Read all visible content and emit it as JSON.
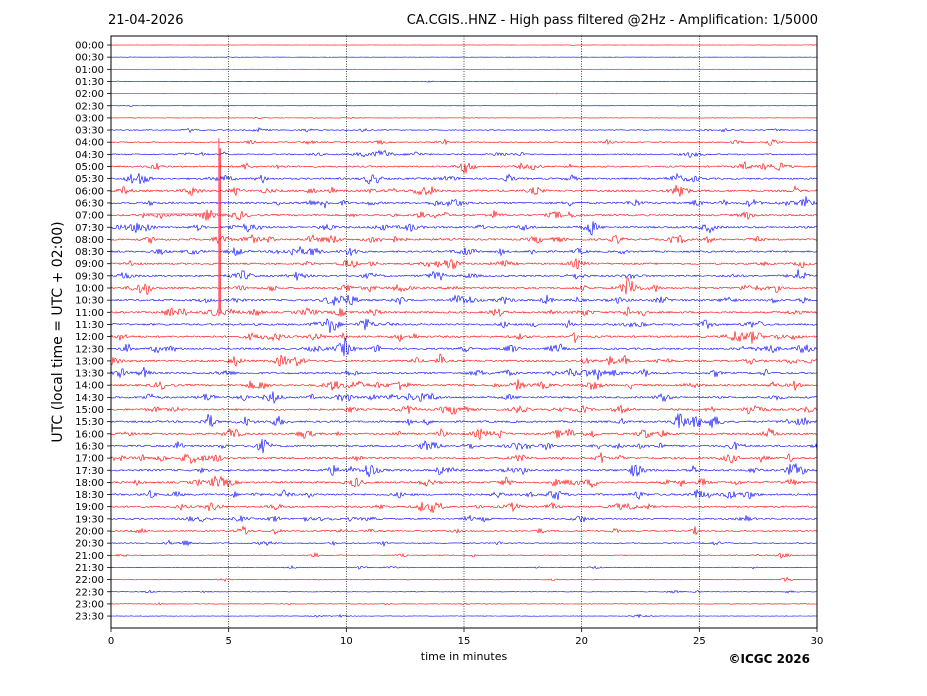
{
  "header": {
    "date": "21-04-2026",
    "station_title": "CA.CGIS..HNZ - High pass filtered @2Hz - Amplification: 1/5000"
  },
  "footer": {
    "copyright": "©ICGC 2026"
  },
  "colors": {
    "trace_odd": "#ff0000",
    "trace_even": "#0000ff",
    "grid": "#000000",
    "event_trace": "#ff6688"
  },
  "chart_data": {
    "type": "line",
    "title": "CA.CGIS..HNZ - High pass filtered @2Hz - Amplification: 1/5000",
    "xlabel": "time in minutes",
    "ylabel": "UTC (local time = UTC + 02:00)",
    "xlim": [
      0,
      30
    ],
    "x_ticks": [
      0,
      5,
      10,
      15,
      20,
      25,
      30
    ],
    "grid_x": true,
    "row_labels": [
      "00:00",
      "00:30",
      "01:00",
      "01:30",
      "02:00",
      "02:30",
      "03:00",
      "03:30",
      "04:00",
      "04:30",
      "05:00",
      "05:30",
      "06:00",
      "06:30",
      "07:00",
      "07:30",
      "08:00",
      "08:30",
      "09:00",
      "09:30",
      "10:00",
      "10:30",
      "11:00",
      "11:30",
      "12:00",
      "12:30",
      "13:00",
      "13:30",
      "14:00",
      "14:30",
      "15:00",
      "15:30",
      "16:00",
      "16:30",
      "17:00",
      "17:30",
      "18:00",
      "18:30",
      "19:00",
      "19:30",
      "20:00",
      "20:30",
      "21:00",
      "21:30",
      "22:00",
      "22:30",
      "23:00",
      "23:30"
    ],
    "trace_colors_alternate": [
      "red",
      "blue"
    ],
    "noise_amplitude_by_row": [
      0.3,
      0.3,
      0.3,
      0.4,
      0.3,
      0.3,
      0.5,
      1.2,
      1.4,
      1.8,
      2.2,
      2.4,
      2.6,
      2.6,
      2.4,
      2.6,
      2.6,
      2.4,
      2.4,
      2.4,
      2.6,
      2.6,
      2.6,
      2.6,
      2.6,
      2.6,
      2.6,
      2.6,
      2.6,
      2.6,
      2.6,
      2.6,
      2.6,
      2.6,
      2.6,
      2.6,
      2.6,
      2.6,
      2.4,
      2.0,
      1.8,
      1.4,
      1.2,
      1.0,
      0.9,
      0.8,
      0.7,
      0.6
    ],
    "event": {
      "minute": 4.6,
      "row_start": 8,
      "row_end": 22,
      "row_peak": 13
    }
  }
}
